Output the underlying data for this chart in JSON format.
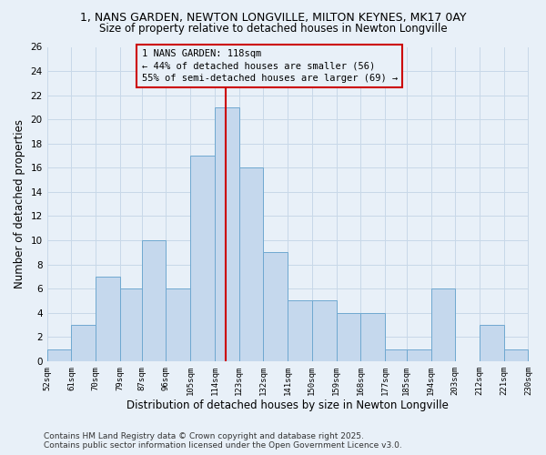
{
  "title_line1": "1, NANS GARDEN, NEWTON LONGVILLE, MILTON KEYNES, MK17 0AY",
  "title_line2": "Size of property relative to detached houses in Newton Longville",
  "xlabel": "Distribution of detached houses by size in Newton Longville",
  "ylabel": "Number of detached properties",
  "bins": [
    52,
    61,
    70,
    79,
    87,
    96,
    105,
    114,
    123,
    132,
    141,
    150,
    159,
    168,
    177,
    185,
    194,
    203,
    212,
    221,
    230
  ],
  "counts": [
    1,
    3,
    7,
    6,
    10,
    6,
    17,
    21,
    16,
    9,
    5,
    5,
    4,
    4,
    1,
    1,
    6,
    0,
    3,
    1
  ],
  "bar_color": "#c5d8ed",
  "bar_edge_color": "#6fa8d0",
  "vline_x": 118,
  "vline_color": "#cc0000",
  "annotation_text": "1 NANS GARDEN: 118sqm\n← 44% of detached houses are smaller (56)\n55% of semi-detached houses are larger (69) →",
  "annotation_box_color": "#cc0000",
  "annotation_fontsize": 7.5,
  "ylim": [
    0,
    26
  ],
  "yticks": [
    0,
    2,
    4,
    6,
    8,
    10,
    12,
    14,
    16,
    18,
    20,
    22,
    24,
    26
  ],
  "tick_labels": [
    "52sqm",
    "61sqm",
    "70sqm",
    "79sqm",
    "87sqm",
    "96sqm",
    "105sqm",
    "114sqm",
    "123sqm",
    "132sqm",
    "141sqm",
    "150sqm",
    "159sqm",
    "168sqm",
    "177sqm",
    "185sqm",
    "194sqm",
    "203sqm",
    "212sqm",
    "221sqm",
    "230sqm"
  ],
  "grid_color": "#c8d8e8",
  "bg_color": "#e8f0f8",
  "footer_text": "Contains HM Land Registry data © Crown copyright and database right 2025.\nContains public sector information licensed under the Open Government Licence v3.0.",
  "footer_fontsize": 6.5,
  "title1_fontsize": 9,
  "title2_fontsize": 8.5,
  "xlabel_fontsize": 8.5,
  "ylabel_fontsize": 8.5
}
